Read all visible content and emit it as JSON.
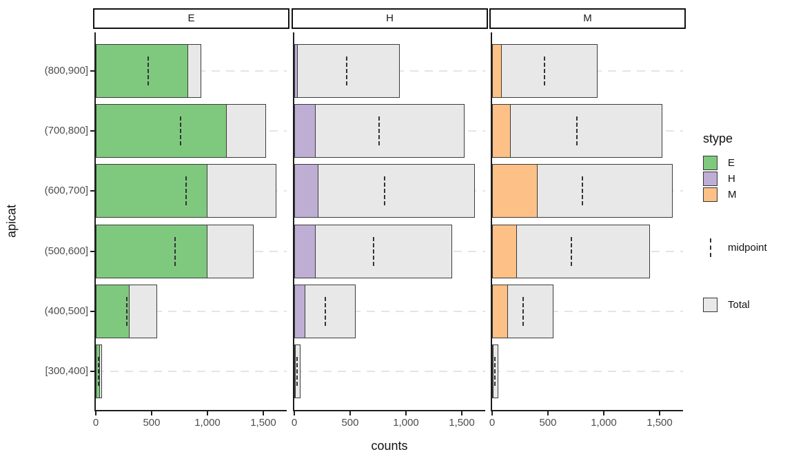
{
  "axes": {
    "x_title": "counts",
    "y_title": "apicat"
  },
  "legend": {
    "title": "stype",
    "items": [
      {
        "label": "E",
        "color": "#7FC97F"
      },
      {
        "label": "H",
        "color": "#BEAED4"
      },
      {
        "label": "M",
        "color": "#FDC086"
      }
    ],
    "midpoint_label": "midpoint",
    "total_label": "Total"
  },
  "colors": {
    "E": "#7FC97F",
    "H": "#BEAED4",
    "M": "#FDC086",
    "total_fill": "#E8E8E8",
    "bar_border": "#3A3A3A",
    "grid": "#E4E4E4",
    "axis_line": "#1C1C1C",
    "tick_text": "#4D4D4D"
  },
  "chart_data": {
    "type": "bar",
    "orientation": "horizontal",
    "title": "",
    "xlabel": "counts",
    "ylabel": "apicat",
    "facets": [
      "E",
      "H",
      "M"
    ],
    "categories": [
      "(800,900]",
      "(700,800]",
      "(600,700]",
      "(500,600]",
      "(400,500]",
      "[300,400]"
    ],
    "series": [
      {
        "name": "E",
        "values": [
          830,
          1170,
          1000,
          1000,
          305,
          40
        ]
      },
      {
        "name": "H",
        "values": [
          30,
          190,
          215,
          190,
          100,
          6
        ]
      },
      {
        "name": "M",
        "values": [
          85,
          165,
          405,
          225,
          145,
          8
        ]
      }
    ],
    "totals": [
      945,
      1525,
      1620,
      1415,
      550,
      54
    ],
    "midpoints": [
      472,
      762,
      810,
      707,
      275,
      27
    ],
    "xlim": [
      0,
      1710
    ],
    "x_ticks": [
      0,
      500,
      1000,
      1500
    ],
    "x_tick_labels": [
      "0",
      "500",
      "1,000",
      "1,500"
    ],
    "legend_position": "right",
    "grid": "dashed horizontal gridlines at each category"
  }
}
